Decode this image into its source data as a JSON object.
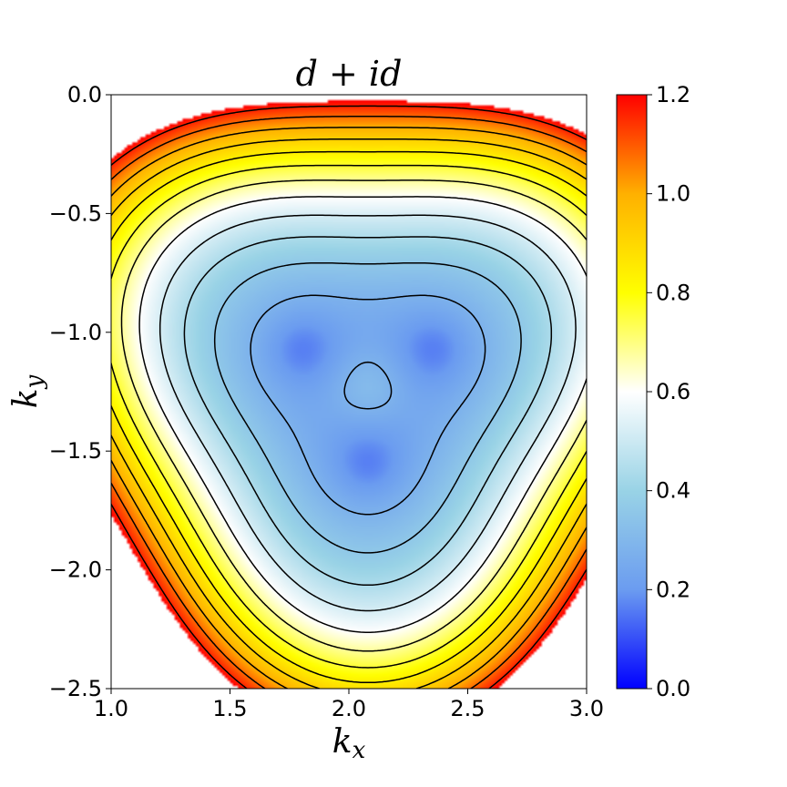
{
  "chart_data": {
    "type": "heatmap",
    "title": "d + id",
    "xlabel": "k_x",
    "ylabel": "k_y",
    "xlim": [
      1.0,
      3.0
    ],
    "ylim": [
      -2.5,
      0.0
    ],
    "xticks": [
      {
        "value": 1.0,
        "label": "1.0"
      },
      {
        "value": 1.5,
        "label": "1.5"
      },
      {
        "value": 2.0,
        "label": "2.0"
      },
      {
        "value": 2.5,
        "label": "2.5"
      },
      {
        "value": 3.0,
        "label": "3.0"
      }
    ],
    "yticks": [
      {
        "value": 0.0,
        "label": "0.0"
      },
      {
        "value": -0.5,
        "label": "−0.5"
      },
      {
        "value": -1.0,
        "label": "−1.0"
      },
      {
        "value": -1.5,
        "label": "−1.5"
      },
      {
        "value": -2.0,
        "label": "−2.0"
      },
      {
        "value": -2.5,
        "label": "−2.5"
      }
    ],
    "colorbar": {
      "range": [
        0.0,
        1.2
      ],
      "ticks": [
        {
          "value": 0.0,
          "label": "0.0"
        },
        {
          "value": 0.2,
          "label": "0.2"
        },
        {
          "value": 0.4,
          "label": "0.4"
        },
        {
          "value": 0.6,
          "label": "0.6"
        },
        {
          "value": 0.8,
          "label": "0.8"
        },
        {
          "value": 1.0,
          "label": "1.0"
        },
        {
          "value": 1.2,
          "label": "1.2"
        }
      ],
      "colormap": [
        "#0000ff",
        "#6b9cf0",
        "#99d3e6",
        "#ffffff",
        "#ffff00",
        "#ffb000",
        "#ff0000"
      ]
    },
    "field": {
      "center": [
        2.08,
        -1.23
      ],
      "minimum_value": 0.2,
      "lobe_angles_deg": [
        270,
        30,
        150
      ],
      "lobe_radius": 0.33
    },
    "contour_levels": [
      0.28,
      0.36,
      0.44,
      0.52,
      0.6,
      0.68,
      0.76,
      0.84,
      0.92,
      1.0,
      1.08,
      1.16
    ],
    "masked_above": 1.2,
    "grid": false
  }
}
